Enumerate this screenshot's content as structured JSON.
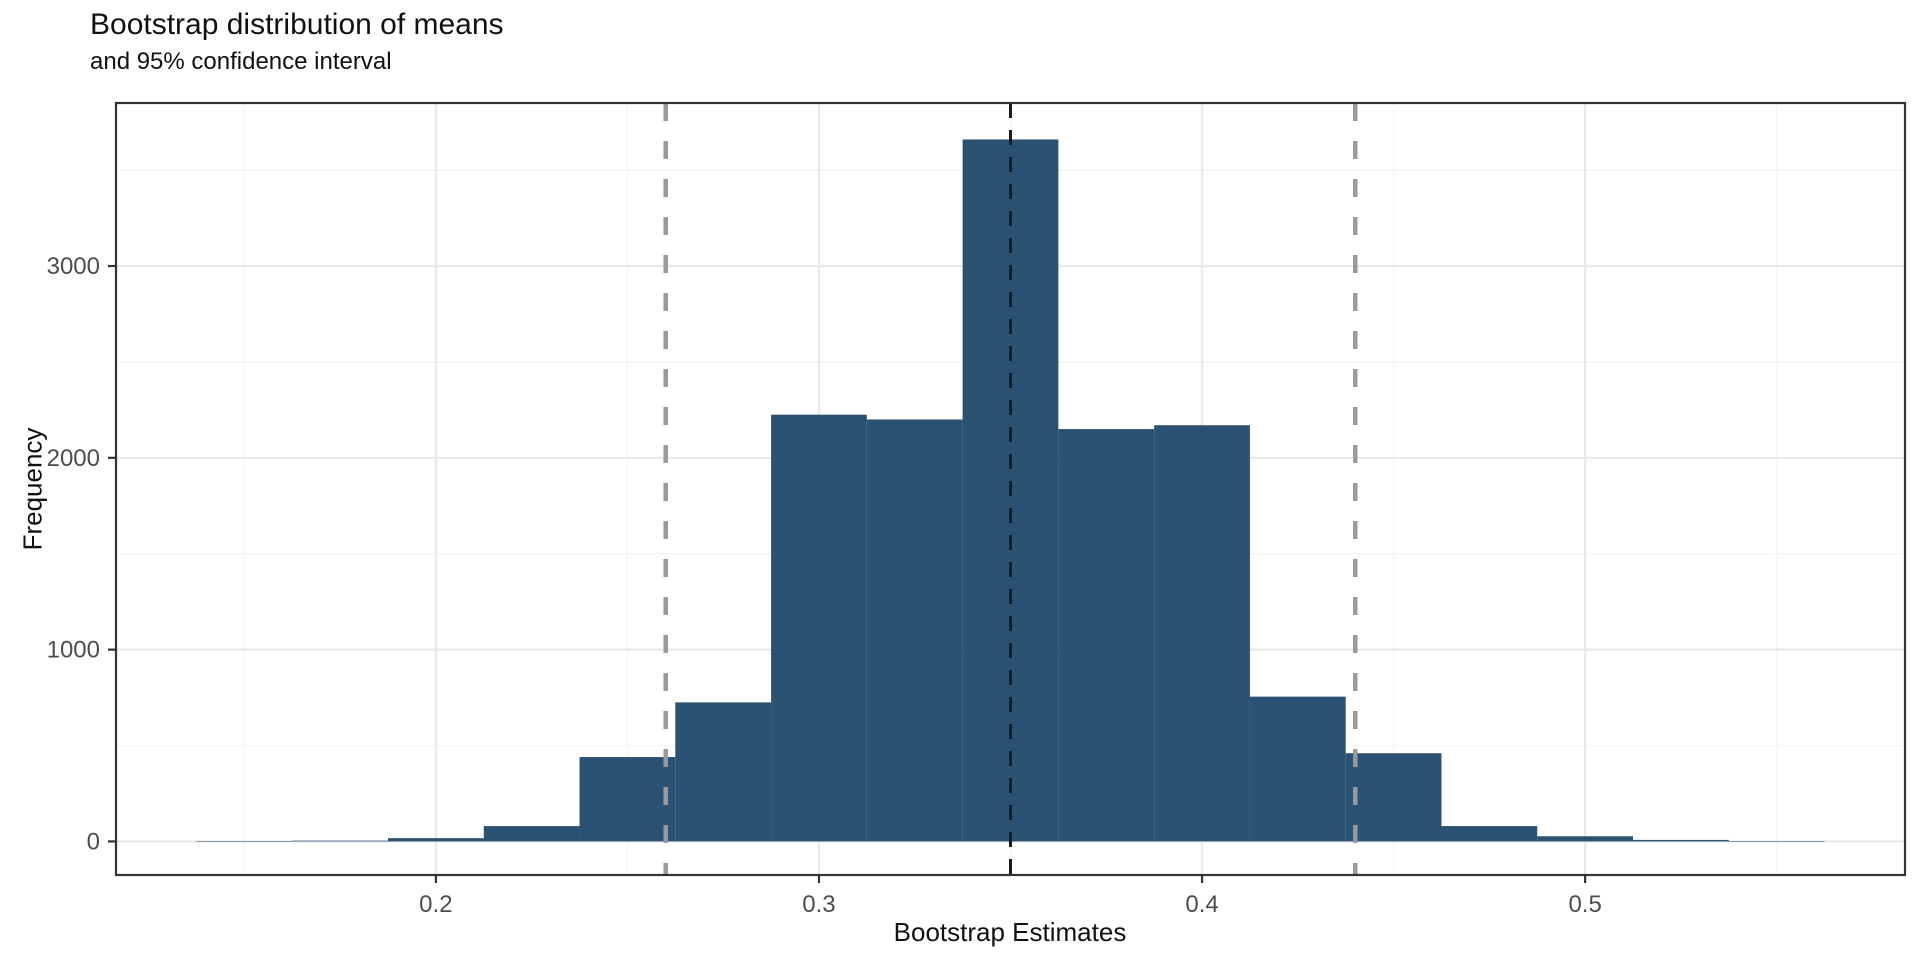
{
  "chart_data": {
    "type": "bar",
    "subtype": "histogram",
    "title": "Bootstrap distribution of means",
    "subtitle": "and 95% confidence interval",
    "xlabel": "Bootstrap Estimates",
    "ylabel": "Frequency",
    "binwidth": 0.025,
    "bin_centers": [
      0.15,
      0.175,
      0.2,
      0.225,
      0.25,
      0.275,
      0.3,
      0.325,
      0.35,
      0.375,
      0.4,
      0.425,
      0.45,
      0.475,
      0.5,
      0.525,
      0.55
    ],
    "counts": [
      2,
      4,
      17,
      80,
      440,
      725,
      2225,
      2200,
      3660,
      2150,
      2170,
      755,
      460,
      80,
      27,
      8,
      2
    ],
    "xlim": [
      0.1165,
      0.5835
    ],
    "ylim": [
      -175,
      3850
    ],
    "x_major_ticks": [
      0.2,
      0.3,
      0.4,
      0.5
    ],
    "x_minor_ticks": [
      0.15,
      0.25,
      0.35,
      0.45,
      0.55
    ],
    "x_tick_labels": [
      "0.2",
      "0.3",
      "0.4",
      "0.5"
    ],
    "y_major_ticks": [
      0,
      1000,
      2000,
      3000
    ],
    "y_minor_ticks": [
      500,
      1500,
      2500,
      3500
    ],
    "y_tick_labels": [
      "0",
      "1000",
      "2000",
      "3000"
    ],
    "grid": true,
    "legend_position": "none",
    "reference_lines": [
      {
        "name": "ci-lower-line",
        "x": 0.26,
        "color": "#9a9a9a",
        "width": 4.5,
        "dash": "18 20"
      },
      {
        "name": "mean-line",
        "x": 0.35,
        "color": "#1a1a1a",
        "width": 3,
        "dash": "15 12"
      },
      {
        "name": "ci-upper-line",
        "x": 0.44,
        "color": "#9a9a9a",
        "width": 4.5,
        "dash": "18 20"
      }
    ],
    "colors": {
      "bar_fill": "#2B5173",
      "panel_border": "#333333",
      "major_grid": "#e9e9e9",
      "minor_grid": "#f5f5f5",
      "tick_mark": "#333333",
      "tick_label": "#4d4d4d"
    }
  }
}
